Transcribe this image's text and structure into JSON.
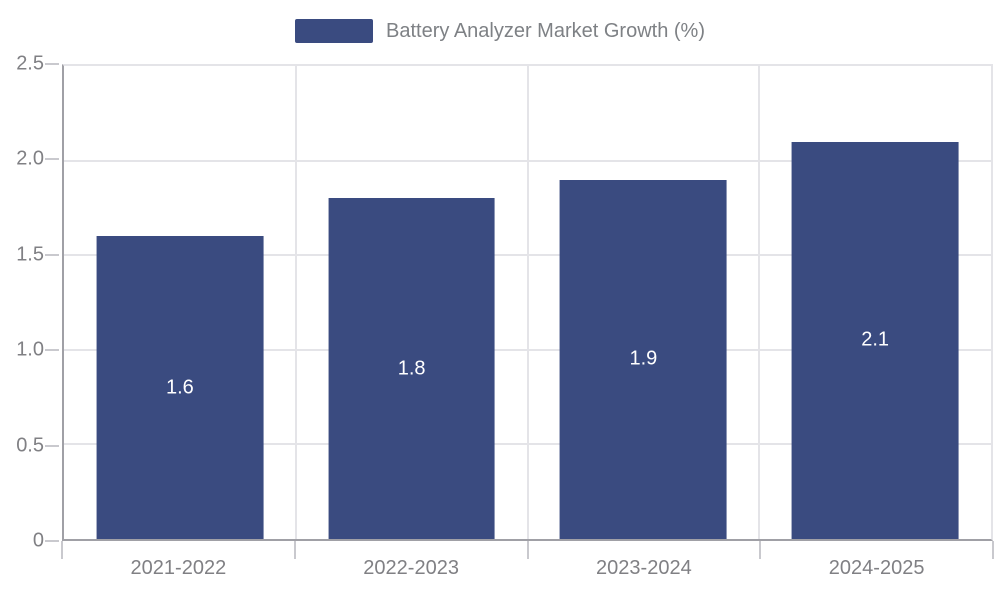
{
  "legend": {
    "label": "Battery Analyzer Market Growth (%)"
  },
  "chart_data": {
    "type": "bar",
    "title": "Battery Analyzer Market Growth (%)",
    "categories": [
      "2021-2022",
      "2022-2023",
      "2023-2024",
      "2024-2025"
    ],
    "values": [
      1.6,
      1.8,
      1.9,
      2.1
    ],
    "value_labels": [
      "1.6",
      "1.8",
      "1.9",
      "2.1"
    ],
    "xlabel": "",
    "ylabel": "",
    "ylim": [
      0,
      2.5
    ],
    "y_ticks": [
      "0",
      "0.5",
      "1.0",
      "1.5",
      "2.0",
      "2.5"
    ],
    "grid": true,
    "legend_position": "top-center",
    "value_label_position": "center-of-bar",
    "colors": {
      "bar": "#3a4b80",
      "value_label": "#ffffff",
      "axis_text": "#808084",
      "legend_text": "#7e8185",
      "gridline": "#e4e4e8",
      "axis_line": "#a0a0a6",
      "tick": "#c9c9ce",
      "background": "#ffffff"
    }
  }
}
